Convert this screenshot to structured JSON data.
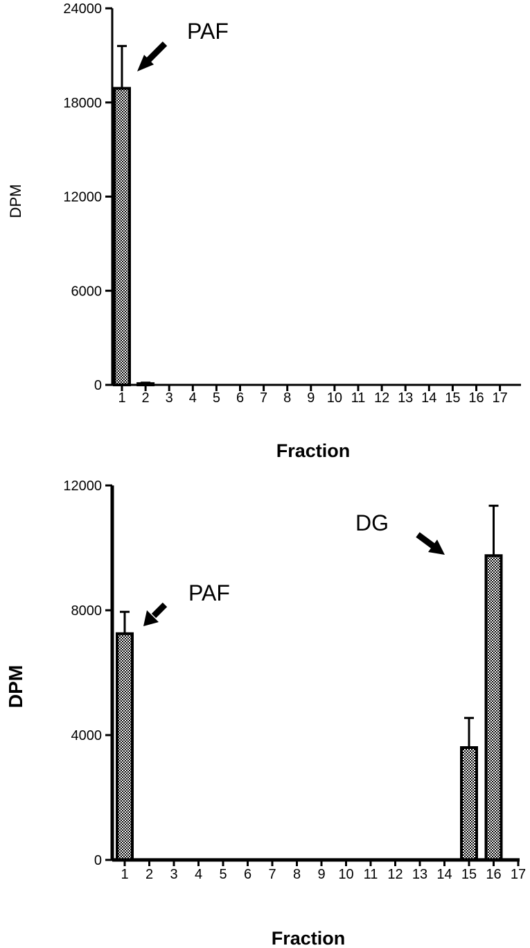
{
  "chart_data": [
    {
      "type": "bar",
      "xlabel": "Fraction",
      "ylabel": "DPM",
      "ylim": [
        0,
        24000
      ],
      "yticks": [
        "0",
        "6000",
        "12000",
        "18000",
        "24000"
      ],
      "categories": [
        "1",
        "2",
        "3",
        "4",
        "5",
        "6",
        "7",
        "8",
        "9",
        "10",
        "11",
        "12",
        "13",
        "14",
        "15",
        "16",
        "17"
      ],
      "values": [
        18900,
        80,
        0,
        0,
        0,
        0,
        0,
        0,
        0,
        0,
        0,
        0,
        0,
        0,
        0,
        0,
        0
      ],
      "errors": [
        2700,
        60,
        0,
        0,
        0,
        0,
        0,
        0,
        0,
        0,
        0,
        0,
        0,
        0,
        0,
        0,
        0
      ],
      "annotations": [
        {
          "text": "PAF",
          "category": "1"
        }
      ],
      "grid": false
    },
    {
      "type": "bar",
      "xlabel": "Fraction",
      "ylabel": "DPM",
      "ylim": [
        0,
        12000
      ],
      "yticks": [
        "0",
        "4000",
        "8000",
        "12000"
      ],
      "categories": [
        "1",
        "2",
        "3",
        "4",
        "5",
        "6",
        "7",
        "8",
        "9",
        "10",
        "11",
        "12",
        "13",
        "14",
        "15",
        "16",
        "17"
      ],
      "values": [
        7250,
        0,
        0,
        0,
        0,
        0,
        0,
        0,
        0,
        0,
        0,
        0,
        0,
        0,
        3600,
        9750,
        0
      ],
      "errors": [
        700,
        0,
        0,
        0,
        0,
        0,
        0,
        0,
        0,
        0,
        0,
        0,
        0,
        0,
        950,
        1600,
        0
      ],
      "annotations": [
        {
          "text": "PAF",
          "category": "1"
        },
        {
          "text": "DG",
          "category": "16"
        }
      ],
      "grid": false
    }
  ]
}
